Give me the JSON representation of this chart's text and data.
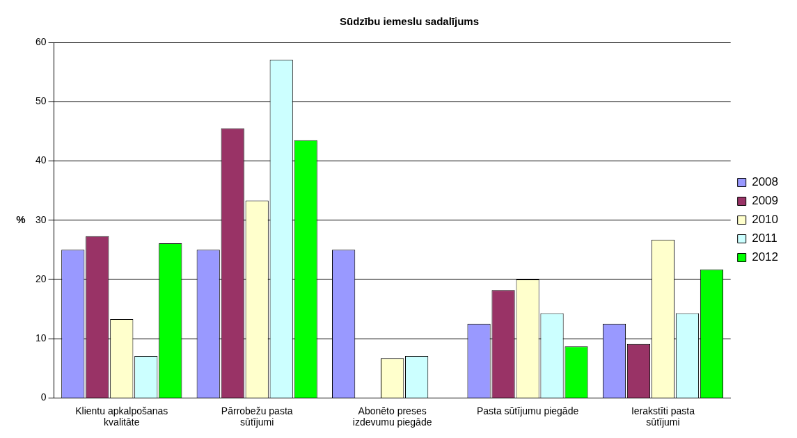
{
  "chart_data": {
    "type": "bar",
    "title": "Sūdzību iemeslu sadalījums",
    "ylabel": "%",
    "categories": [
      "Klientu apkalpošanas kvalitāte",
      "Pārrobežu pasta sūtījumi",
      "Abonēto preses izdevumu piegāde",
      "Pasta sūtījumu piegāde",
      "Ierakstīti pasta sūtījumi"
    ],
    "series": [
      {
        "name": "2008",
        "color": "#9999ff",
        "values": [
          25,
          25,
          25,
          12.5,
          12.5
        ]
      },
      {
        "name": "2009",
        "color": "#993366",
        "values": [
          27.3,
          45.5,
          0,
          18.2,
          9.1
        ]
      },
      {
        "name": "2010",
        "color": "#ffffcc",
        "values": [
          13.3,
          33.3,
          6.7,
          20,
          26.7
        ]
      },
      {
        "name": "2011",
        "color": "#ccffff",
        "values": [
          7.1,
          57.1,
          7.1,
          14.3,
          14.3
        ]
      },
      {
        "name": "2012",
        "color": "#00ff00",
        "values": [
          26.1,
          43.5,
          0,
          8.7,
          21.7
        ]
      }
    ],
    "ylim": [
      0,
      60
    ],
    "yticks": [
      0,
      10,
      20,
      30,
      40,
      50,
      60
    ],
    "grid": "y",
    "legend": "right"
  }
}
